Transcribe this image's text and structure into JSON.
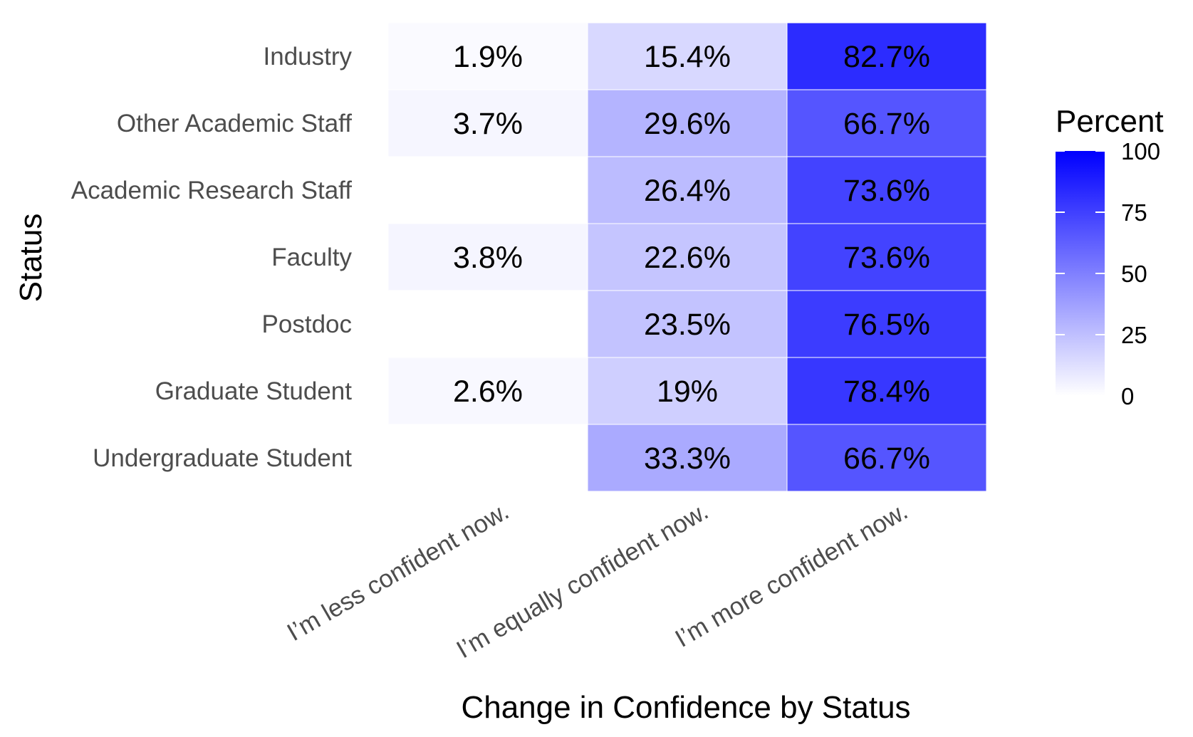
{
  "chart_data": {
    "type": "heatmap",
    "xlabel": "Change in Confidence by Status",
    "ylabel": "Status",
    "x_categories": [
      "I’m less confident now.",
      "I’m equally confident now.",
      "I’m more confident now."
    ],
    "y_categories": [
      "Industry",
      "Other Academic Staff",
      "Academic Research Staff",
      "Faculty",
      "Postdoc",
      "Graduate Student",
      "Undergraduate Student"
    ],
    "cells": [
      {
        "x": "I’m less confident now.",
        "y": "Industry",
        "value": 1.9,
        "label": "1.9%"
      },
      {
        "x": "I’m equally confident now.",
        "y": "Industry",
        "value": 15.4,
        "label": "15.4%"
      },
      {
        "x": "I’m more confident now.",
        "y": "Industry",
        "value": 82.7,
        "label": "82.7%"
      },
      {
        "x": "I’m less confident now.",
        "y": "Other Academic Staff",
        "value": 3.7,
        "label": "3.7%"
      },
      {
        "x": "I’m equally confident now.",
        "y": "Other Academic Staff",
        "value": 29.6,
        "label": "29.6%"
      },
      {
        "x": "I’m more confident now.",
        "y": "Other Academic Staff",
        "value": 66.7,
        "label": "66.7%"
      },
      {
        "x": "I’m equally confident now.",
        "y": "Academic Research Staff",
        "value": 26.4,
        "label": "26.4%"
      },
      {
        "x": "I’m more confident now.",
        "y": "Academic Research Staff",
        "value": 73.6,
        "label": "73.6%"
      },
      {
        "x": "I’m less confident now.",
        "y": "Faculty",
        "value": 3.8,
        "label": "3.8%"
      },
      {
        "x": "I’m equally confident now.",
        "y": "Faculty",
        "value": 22.6,
        "label": "22.6%"
      },
      {
        "x": "I’m more confident now.",
        "y": "Faculty",
        "value": 73.6,
        "label": "73.6%"
      },
      {
        "x": "I’m equally confident now.",
        "y": "Postdoc",
        "value": 23.5,
        "label": "23.5%"
      },
      {
        "x": "I’m more confident now.",
        "y": "Postdoc",
        "value": 76.5,
        "label": "76.5%"
      },
      {
        "x": "I’m less confident now.",
        "y": "Graduate Student",
        "value": 2.6,
        "label": "2.6%"
      },
      {
        "x": "I’m equally confident now.",
        "y": "Graduate Student",
        "value": 19,
        "label": "19%"
      },
      {
        "x": "I’m more confident now.",
        "y": "Graduate Student",
        "value": 78.4,
        "label": "78.4%"
      },
      {
        "x": "I’m equally confident now.",
        "y": "Undergraduate Student",
        "value": 33.3,
        "label": "33.3%"
      },
      {
        "x": "I’m more confident now.",
        "y": "Undergraduate Student",
        "value": 66.7,
        "label": "66.7%"
      }
    ],
    "legend": {
      "title": "Percent",
      "ticks": [
        0,
        25,
        50,
        75,
        100
      ],
      "range": [
        0,
        100
      ],
      "placement": "right"
    },
    "color_low": "#ffffff",
    "color_high": "#0000ff",
    "grid": false
  }
}
